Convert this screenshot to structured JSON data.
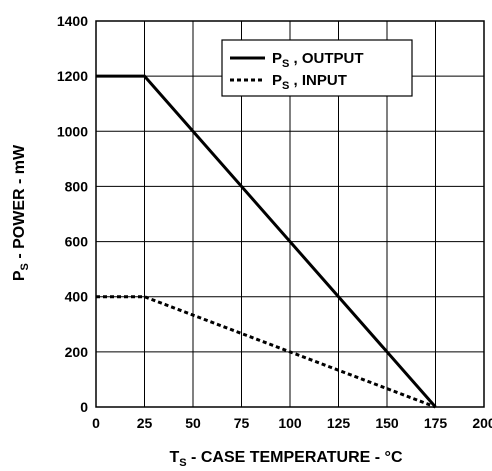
{
  "chart_data": {
    "type": "line",
    "xlabel": {
      "main": "T",
      "sub": "S",
      "rest": " - CASE TEMPERATURE - °C"
    },
    "ylabel": {
      "main": "P",
      "sub": "S",
      "rest": " - POWER - mW"
    },
    "xlim": [
      0,
      200
    ],
    "ylim": [
      0,
      1400
    ],
    "x_ticks": [
      "0",
      "25",
      "50",
      "75",
      "100",
      "125",
      "150",
      "175",
      "200"
    ],
    "y_ticks": [
      "0",
      "200",
      "400",
      "600",
      "800",
      "1000",
      "1200",
      "1400"
    ],
    "grid": true,
    "legend_position": "top-right",
    "series": [
      {
        "name": {
          "main": "P",
          "sub": "S",
          "rest": " , OUTPUT"
        },
        "style": "solid",
        "color": "#000000",
        "points": [
          [
            0,
            1200
          ],
          [
            25,
            1200
          ],
          [
            175,
            0
          ]
        ]
      },
      {
        "name": {
          "main": "P",
          "sub": "S",
          "rest": " , INPUT"
        },
        "style": "dotted",
        "color": "#000000",
        "points": [
          [
            0,
            400
          ],
          [
            25,
            400
          ],
          [
            175,
            0
          ]
        ]
      }
    ]
  }
}
